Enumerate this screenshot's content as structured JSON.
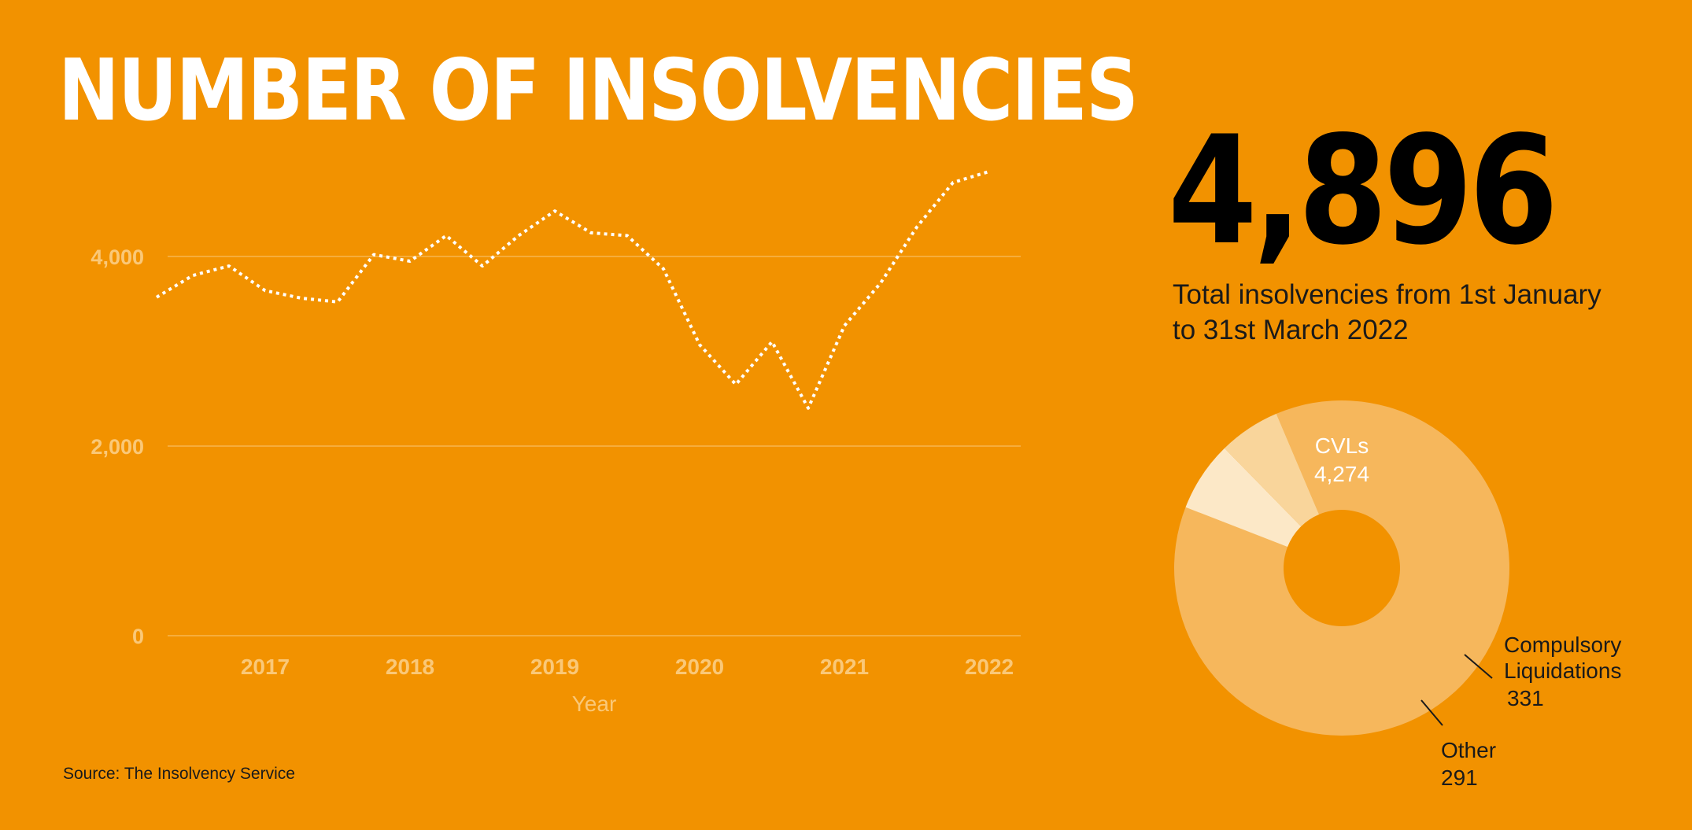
{
  "title": "NUMBER OF INSOLVENCIES",
  "headline": {
    "value": "4,896",
    "caption_line1": "Total insolvencies from 1st January",
    "caption_line2": "to 31st March 2022"
  },
  "source": "Source: The Insolvency Service",
  "colors": {
    "background": "#F29200",
    "line": "#ffffff",
    "axis_text": "#FAC878",
    "grid": "#FAC878",
    "donut_cvls": "#F6B75C",
    "donut_compulsory": "#FCE8C7",
    "donut_other": "#F9D59B"
  },
  "chart_data": [
    {
      "type": "line",
      "title": "",
      "xlabel": "Year",
      "ylabel": "",
      "x_ticks": [
        "2017",
        "2018",
        "2019",
        "2020",
        "2021",
        "2022"
      ],
      "y_ticks": [
        "0",
        "2,000",
        "4,000"
      ],
      "ylim": [
        0,
        5000
      ],
      "grid": true,
      "line_style": "dotted",
      "series": [
        {
          "x": [
            "2016 Q2",
            "2016 Q3",
            "2016 Q4",
            "2017 Q1",
            "2017 Q2",
            "2017 Q3",
            "2017 Q4",
            "2018 Q1",
            "2018 Q2",
            "2018 Q3",
            "2018 Q4",
            "2019 Q1",
            "2019 Q2",
            "2019 Q3",
            "2019 Q4",
            "2020 Q1",
            "2020 Q2",
            "2020 Q3",
            "2020 Q4",
            "2021 Q1",
            "2021 Q2",
            "2021 Q3",
            "2021 Q4",
            "2022 Q1"
          ],
          "values": [
            3570,
            3800,
            3900,
            3640,
            3560,
            3520,
            4020,
            3950,
            4220,
            3900,
            4220,
            4480,
            4250,
            4220,
            3870,
            3070,
            2650,
            3100,
            2400,
            3270,
            3720,
            4310,
            4780,
            4896
          ]
        }
      ]
    },
    {
      "type": "pie",
      "donut": true,
      "labels": [
        "CVLs",
        "Compulsory Liquidations",
        "Other"
      ],
      "values": [
        4274,
        331,
        291
      ],
      "value_labels": [
        "4,274",
        "331",
        "291"
      ]
    }
  ]
}
